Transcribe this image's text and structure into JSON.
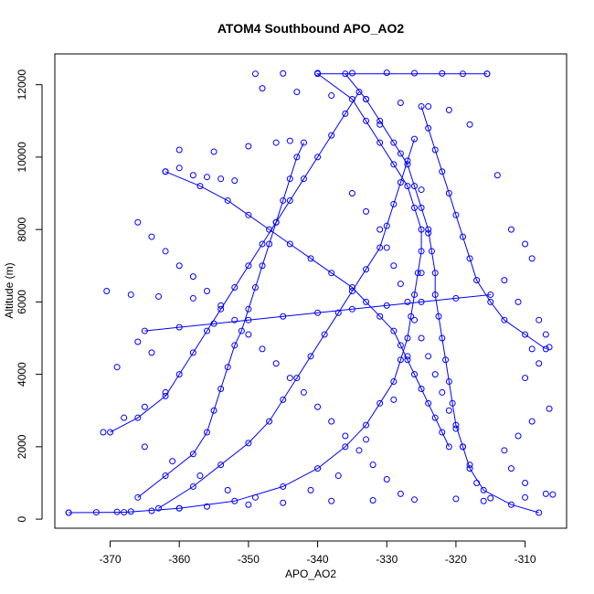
{
  "chart_data": {
    "type": "scatter",
    "title": "ATOM4 Southbound APO_AO2",
    "xlabel": "APO_AO2",
    "ylabel": "Altitude (m)",
    "xlim": [
      -378,
      -304
    ],
    "ylim": [
      -250,
      12850
    ],
    "x_ticks": [
      -370,
      -360,
      -350,
      -340,
      -330,
      -320,
      -310
    ],
    "y_ticks": [
      0,
      2000,
      4000,
      6000,
      8000,
      10000,
      12000
    ],
    "x_tick_labels": [
      "-370",
      "-360",
      "-350",
      "-340",
      "-330",
      "-320",
      "-310"
    ],
    "y_tick_labels": [
      "0",
      "2000",
      "4000",
      "6000",
      "8000",
      "10000",
      "12000"
    ],
    "grid": false,
    "legend": "none",
    "marker": "open-circle",
    "connected": true,
    "series_color": "#0000ff",
    "series": [
      {
        "profiles": [
          [
            [
              -376,
              180
            ],
            [
              -368,
              190
            ],
            [
              -360,
              300
            ],
            [
              -352,
              500
            ],
            [
              -345,
              900
            ],
            [
              -340,
              1400
            ],
            [
              -336,
              2000
            ],
            [
              -333,
              2600
            ],
            [
              -331,
              3200
            ],
            [
              -329,
              3800
            ],
            [
              -328,
              4400
            ],
            [
              -327,
              5000
            ],
            [
              -326.5,
              5600
            ],
            [
              -326,
              6200
            ],
            [
              -325.5,
              6800
            ],
            [
              -325,
              7400
            ],
            [
              -325,
              8000
            ],
            [
              -326,
              8600
            ],
            [
              -327,
              9200
            ],
            [
              -329,
              9800
            ],
            [
              -331,
              10400
            ],
            [
              -333,
              11000
            ],
            [
              -335,
              11600
            ],
            [
              -340,
              12300
            ],
            [
              -315.5,
              12300
            ]
          ],
          [
            [
              -308,
              180
            ],
            [
              -312,
              400
            ],
            [
              -316,
              800
            ],
            [
              -318,
              1400
            ],
            [
              -319,
              2000
            ],
            [
              -320,
              2600
            ],
            [
              -320.5,
              3200
            ],
            [
              -321,
              3800
            ],
            [
              -321.5,
              4400
            ],
            [
              -322,
              5000
            ],
            [
              -322.5,
              5600
            ],
            [
              -323,
              6200
            ],
            [
              -323,
              6800
            ],
            [
              -323.5,
              7400
            ],
            [
              -324,
              8000
            ],
            [
              -325,
              8600
            ],
            [
              -326,
              9200
            ],
            [
              -327,
              9800
            ],
            [
              -329,
              10400
            ],
            [
              -331,
              11000
            ],
            [
              -333,
              11600
            ],
            [
              -336,
              12300
            ]
          ],
          [
            [
              -366,
              600
            ],
            [
              -362,
              1200
            ],
            [
              -358,
              1800
            ],
            [
              -356,
              2400
            ],
            [
              -355,
              3000
            ],
            [
              -354,
              3600
            ],
            [
              -353,
              4200
            ],
            [
              -352,
              4800
            ],
            [
              -351,
              5200
            ],
            [
              -350,
              5800
            ],
            [
              -349,
              6400
            ],
            [
              -348,
              7000
            ],
            [
              -347,
              7600
            ],
            [
              -346,
              8200
            ],
            [
              -345,
              8800
            ],
            [
              -344,
              9400
            ],
            [
              -343,
              10000
            ],
            [
              -342,
              10400
            ]
          ],
          [
            [
              -363,
              300
            ],
            [
              -358,
              900
            ],
            [
              -354,
              1500
            ],
            [
              -350,
              2100
            ],
            [
              -347,
              2700
            ],
            [
              -345,
              3300
            ],
            [
              -343,
              3900
            ],
            [
              -341,
              4500
            ],
            [
              -339,
              5100
            ],
            [
              -337,
              5700
            ],
            [
              -335,
              6300
            ],
            [
              -333,
              6900
            ],
            [
              -331,
              7500
            ],
            [
              -330,
              8100
            ],
            [
              -329,
              8700
            ],
            [
              -328,
              9300
            ],
            [
              -327,
              9900
            ],
            [
              -326,
              10500
            ]
          ],
          [
            [
              -370,
              2400
            ],
            [
              -366,
              2800
            ],
            [
              -362,
              3400
            ],
            [
              -360,
              4000
            ],
            [
              -358,
              4600
            ],
            [
              -356,
              5200
            ],
            [
              -354,
              5800
            ],
            [
              -352,
              6400
            ],
            [
              -350,
              7000
            ],
            [
              -348,
              7600
            ],
            [
              -346,
              8200
            ],
            [
              -344,
              8800
            ],
            [
              -342,
              9400
            ],
            [
              -340,
              10000
            ],
            [
              -338,
              10600
            ],
            [
              -336,
              11200
            ],
            [
              -334,
              11800
            ]
          ],
          [
            [
              -307,
              4700
            ],
            [
              -310,
              5100
            ],
            [
              -313,
              5500
            ],
            [
              -315,
              6000
            ],
            [
              -317,
              6600
            ],
            [
              -318,
              7200
            ],
            [
              -319,
              7800
            ],
            [
              -320,
              8400
            ],
            [
              -321,
              9000
            ],
            [
              -322,
              9600
            ],
            [
              -323,
              10200
            ],
            [
              -324,
              10800
            ],
            [
              -325,
              11400
            ]
          ],
          [
            [
              -362,
              9600
            ],
            [
              -357,
              9200
            ],
            [
              -353,
              8800
            ],
            [
              -350,
              8400
            ],
            [
              -347,
              8000
            ],
            [
              -344,
              7600
            ],
            [
              -341,
              7200
            ],
            [
              -338,
              6800
            ],
            [
              -335,
              6400
            ],
            [
              -333,
              6000
            ],
            [
              -331,
              5600
            ],
            [
              -329,
              5200
            ],
            [
              -328,
              4800
            ],
            [
              -327,
              4400
            ],
            [
              -326,
              4000
            ],
            [
              -325,
              3600
            ],
            [
              -324,
              3200
            ],
            [
              -323,
              2800
            ],
            [
              -322,
              2400
            ],
            [
              -321,
              2000
            ]
          ],
          [
            [
              -365,
              5200
            ],
            [
              -360,
              5300
            ],
            [
              -355,
              5400
            ],
            [
              -350,
              5500
            ],
            [
              -345,
              5600
            ],
            [
              -340,
              5700
            ],
            [
              -335,
              5800
            ],
            [
              -330,
              5900
            ],
            [
              -325,
              6000
            ],
            [
              -320,
              6100
            ],
            [
              -315,
              6200
            ]
          ]
        ],
        "points": [
          [
            -376,
            180
          ],
          [
            -372,
            190
          ],
          [
            -369,
            200
          ],
          [
            -367,
            210
          ],
          [
            -364,
            230
          ],
          [
            -360,
            300
          ],
          [
            -356,
            350
          ],
          [
            -350,
            400
          ],
          [
            -345,
            450
          ],
          [
            -338,
            500
          ],
          [
            -332,
            520
          ],
          [
            -326,
            540
          ],
          [
            -320,
            560
          ],
          [
            -315,
            580
          ],
          [
            -310,
            600
          ],
          [
            -306,
            680
          ],
          [
            -370.5,
            6300
          ],
          [
            -367,
            6200
          ],
          [
            -363,
            6150
          ],
          [
            -358,
            6100
          ],
          [
            -369,
            4200
          ],
          [
            -371,
            2400
          ],
          [
            -368,
            2800
          ],
          [
            -365,
            3100
          ],
          [
            -362,
            3500
          ],
          [
            -364,
            4600
          ],
          [
            -366,
            4900
          ],
          [
            -362,
            9600
          ],
          [
            -360,
            9700
          ],
          [
            -358,
            9500
          ],
          [
            -356,
            9450
          ],
          [
            -354,
            9400
          ],
          [
            -352,
            9350
          ],
          [
            -360,
            10200
          ],
          [
            -355,
            10150
          ],
          [
            -350,
            10300
          ],
          [
            -346,
            10400
          ],
          [
            -344,
            10450
          ],
          [
            -349,
            12300
          ],
          [
            -345,
            12310
          ],
          [
            -340,
            12320
          ],
          [
            -335,
            12320
          ],
          [
            -330,
            12330
          ],
          [
            -326,
            12320
          ],
          [
            -322,
            12310
          ],
          [
            -319,
            12300
          ],
          [
            -315.5,
            12300
          ],
          [
            -348,
            11900
          ],
          [
            -343,
            11800
          ],
          [
            -338,
            11700
          ],
          [
            -333,
            11600
          ],
          [
            -328,
            11500
          ],
          [
            -324,
            11400
          ],
          [
            -321,
            11300
          ],
          [
            -318,
            10900
          ],
          [
            -314,
            9500
          ],
          [
            -312,
            8000
          ],
          [
            -310,
            7600
          ],
          [
            -309,
            7200
          ],
          [
            -313,
            6600
          ],
          [
            -311,
            6000
          ],
          [
            -308,
            5500
          ],
          [
            -307,
            5100
          ],
          [
            -309,
            4700
          ],
          [
            -306.5,
            4750
          ],
          [
            -308,
            4300
          ],
          [
            -310,
            3900
          ],
          [
            -306.5,
            3050
          ],
          [
            -309,
            2700
          ],
          [
            -311,
            2300
          ],
          [
            -313,
            1900
          ],
          [
            -312,
            1400
          ],
          [
            -310,
            1000
          ],
          [
            -307,
            700
          ],
          [
            -366,
            8200
          ],
          [
            -364,
            7800
          ],
          [
            -362,
            7400
          ],
          [
            -360,
            7000
          ],
          [
            -358,
            6700
          ],
          [
            -356,
            6300
          ],
          [
            -354,
            5900
          ],
          [
            -352,
            5500
          ],
          [
            -350,
            5100
          ],
          [
            -348,
            4700
          ],
          [
            -346,
            4300
          ],
          [
            -344,
            3900
          ],
          [
            -342,
            3500
          ],
          [
            -340,
            3100
          ],
          [
            -338,
            2700
          ],
          [
            -336,
            2300
          ],
          [
            -334,
            1900
          ],
          [
            -332,
            1500
          ],
          [
            -330,
            1100
          ],
          [
            -328,
            700
          ],
          [
            -335,
            9000
          ],
          [
            -333,
            8500
          ],
          [
            -331,
            8000
          ],
          [
            -330,
            7500
          ],
          [
            -329,
            7000
          ],
          [
            -328,
            6500
          ],
          [
            -327,
            6000
          ],
          [
            -326,
            5500
          ],
          [
            -325,
            5000
          ],
          [
            -324,
            4500
          ],
          [
            -323,
            4000
          ],
          [
            -322,
            3500
          ],
          [
            -321,
            3000
          ],
          [
            -320,
            2500
          ],
          [
            -319,
            2000
          ],
          [
            -318,
            1500
          ],
          [
            -317,
            1000
          ],
          [
            -316,
            500
          ],
          [
            -365,
            2000
          ],
          [
            -361,
            1600
          ],
          [
            -357,
            1200
          ],
          [
            -353,
            800
          ],
          [
            -349,
            600
          ],
          [
            -341,
            800
          ],
          [
            -337,
            1200
          ],
          [
            -333,
            2200
          ],
          [
            -329,
            3300
          ],
          [
            -327,
            4500
          ],
          [
            -325,
            6800
          ],
          [
            -324,
            7900
          ],
          [
            -325,
            9100
          ],
          [
            -328,
            10100
          ],
          [
            -331,
            10900
          ]
        ]
      }
    ]
  }
}
